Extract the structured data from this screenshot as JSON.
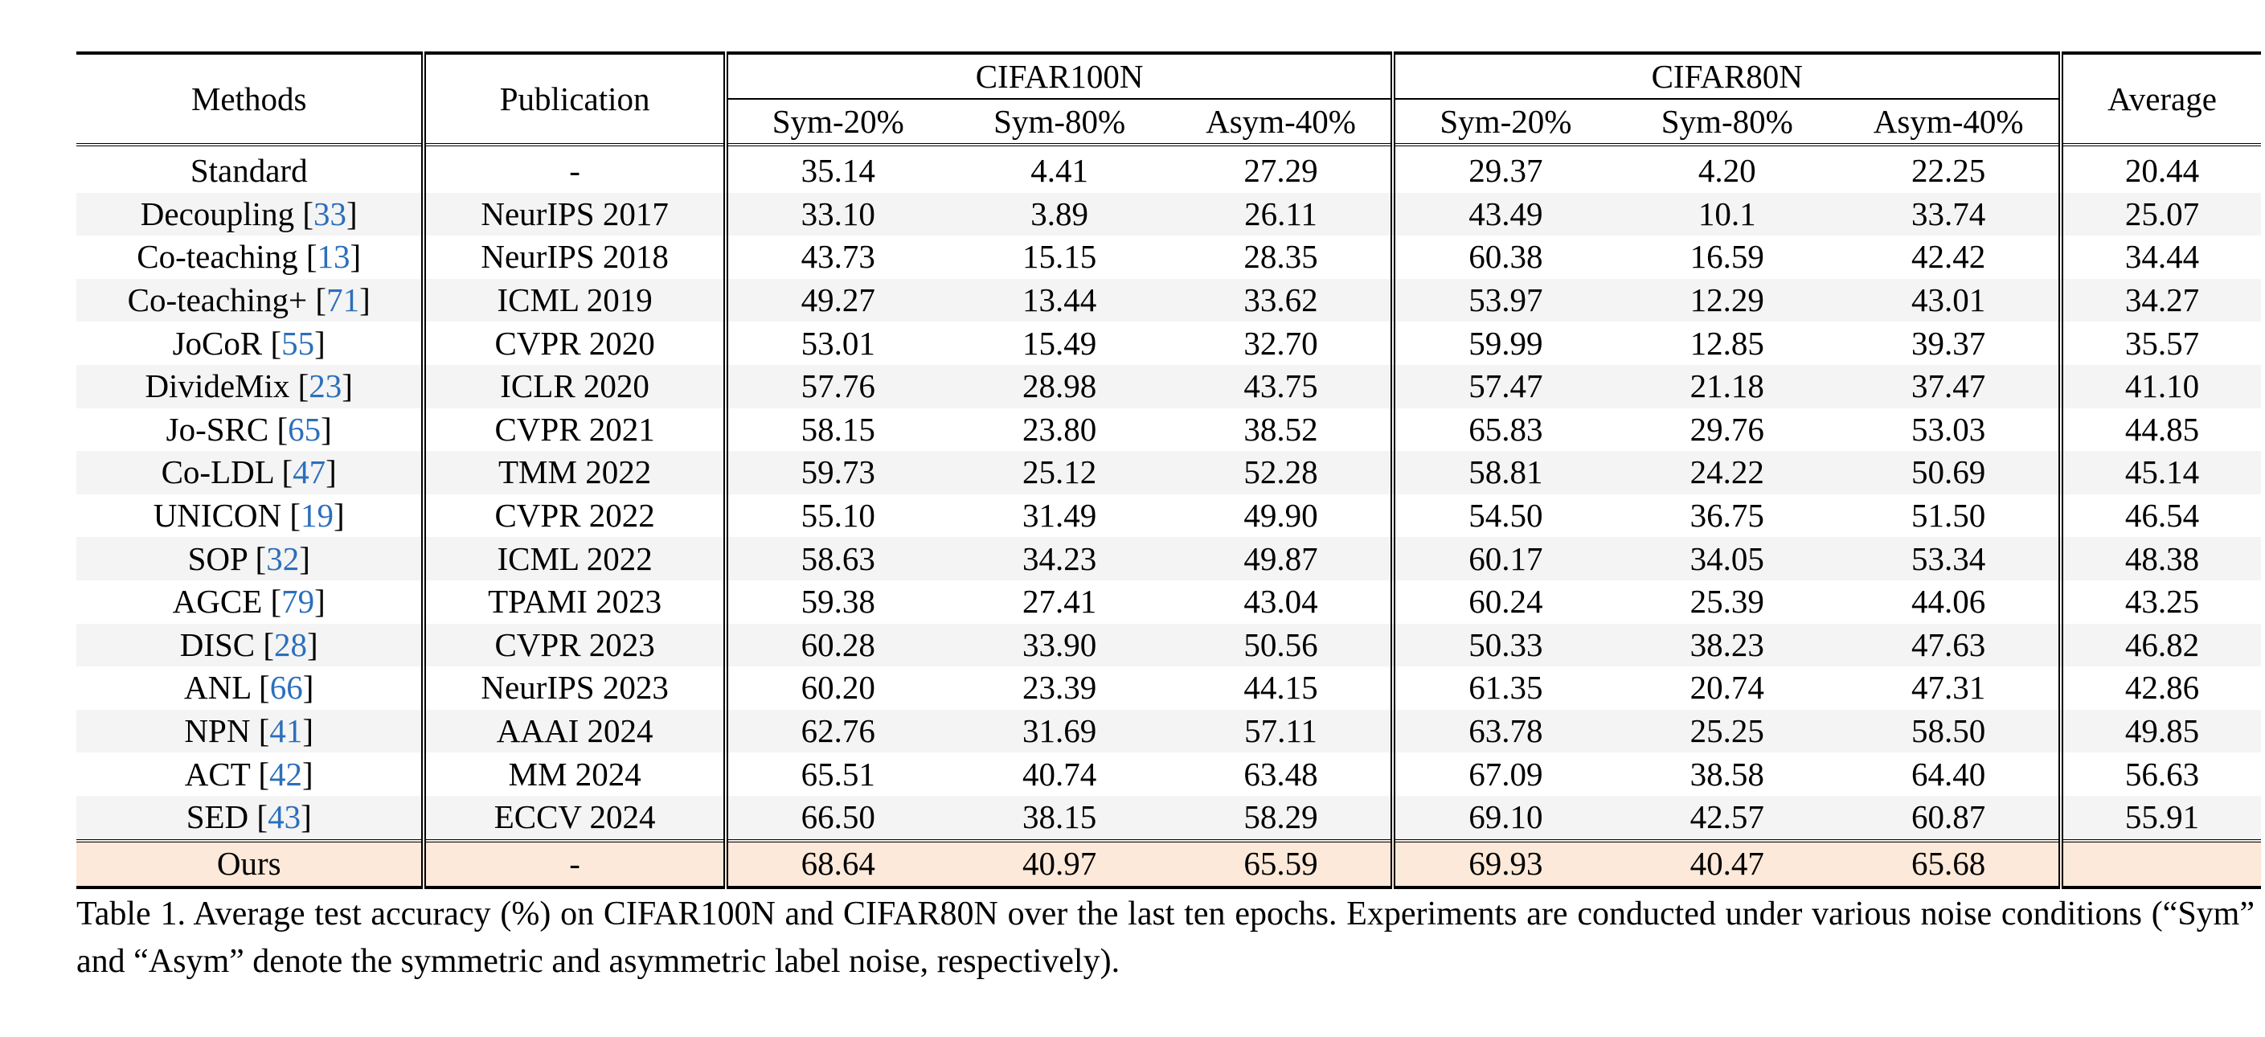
{
  "table": {
    "headers": {
      "methods": "Methods",
      "publication": "Publication",
      "group1": "CIFAR100N",
      "group2": "CIFAR80N",
      "average": "Average",
      "sub": [
        "Sym-20%",
        "Sym-80%",
        "Asym-40%",
        "Sym-20%",
        "Sym-80%",
        "Asym-40%"
      ]
    },
    "rows": [
      {
        "method": "Standard",
        "ref": "",
        "pub": "-",
        "v": [
          "35.14",
          "4.41",
          "27.29",
          "29.37",
          "4.20",
          "22.25",
          "20.44"
        ]
      },
      {
        "method": "Decoupling",
        "ref": "33",
        "pub": "NeurIPS 2017",
        "v": [
          "33.10",
          "3.89",
          "26.11",
          "43.49",
          "10.1",
          "33.74",
          "25.07"
        ]
      },
      {
        "method": "Co-teaching",
        "ref": "13",
        "pub": "NeurIPS 2018",
        "v": [
          "43.73",
          "15.15",
          "28.35",
          "60.38",
          "16.59",
          "42.42",
          "34.44"
        ]
      },
      {
        "method": "Co-teaching+",
        "ref": "71",
        "pub": "ICML 2019",
        "v": [
          "49.27",
          "13.44",
          "33.62",
          "53.97",
          "12.29",
          "43.01",
          "34.27"
        ]
      },
      {
        "method": "JoCoR",
        "ref": "55",
        "pub": "CVPR 2020",
        "v": [
          "53.01",
          "15.49",
          "32.70",
          "59.99",
          "12.85",
          "39.37",
          "35.57"
        ]
      },
      {
        "method": "DivideMix",
        "ref": "23",
        "pub": "ICLR 2020",
        "v": [
          "57.76",
          "28.98",
          "43.75",
          "57.47",
          "21.18",
          "37.47",
          "41.10"
        ]
      },
      {
        "method": "Jo-SRC",
        "ref": "65",
        "pub": "CVPR 2021",
        "v": [
          "58.15",
          "23.80",
          "38.52",
          "65.83",
          "29.76",
          "53.03",
          "44.85"
        ]
      },
      {
        "method": "Co-LDL",
        "ref": "47",
        "pub": "TMM 2022",
        "v": [
          "59.73",
          "25.12",
          "52.28",
          "58.81",
          "24.22",
          "50.69",
          "45.14"
        ]
      },
      {
        "method": "UNICON",
        "ref": "19",
        "pub": "CVPR 2022",
        "v": [
          "55.10",
          "31.49",
          "49.90",
          "54.50",
          "36.75",
          "51.50",
          "46.54"
        ]
      },
      {
        "method": "SOP",
        "ref": "32",
        "pub": "ICML 2022",
        "v": [
          "58.63",
          "34.23",
          "49.87",
          "60.17",
          "34.05",
          "53.34",
          "48.38"
        ]
      },
      {
        "method": "AGCE",
        "ref": "79",
        "pub": "TPAMI 2023",
        "v": [
          "59.38",
          "27.41",
          "43.04",
          "60.24",
          "25.39",
          "44.06",
          "43.25"
        ]
      },
      {
        "method": "DISC",
        "ref": "28",
        "pub": "CVPR 2023",
        "v": [
          "60.28",
          "33.90",
          "50.56",
          "50.33",
          "38.23",
          "47.63",
          "46.82"
        ]
      },
      {
        "method": "ANL",
        "ref": "66",
        "pub": "NeurIPS 2023",
        "v": [
          "60.20",
          "23.39",
          "44.15",
          "61.35",
          "20.74",
          "47.31",
          "42.86"
        ]
      },
      {
        "method": "NPN",
        "ref": "41",
        "pub": "AAAI 2024",
        "v": [
          "62.76",
          "31.69",
          "57.11",
          "63.78",
          "25.25",
          "58.50",
          "49.85"
        ]
      },
      {
        "method": "ACT",
        "ref": "42",
        "pub": "MM 2024",
        "v": [
          "65.51",
          "40.74",
          "63.48",
          "67.09",
          "38.58",
          "64.40",
          "56.63"
        ]
      },
      {
        "method": "SED",
        "ref": "43",
        "pub": "ECCV 2024",
        "v": [
          "66.50",
          "38.15",
          "58.29",
          "69.10",
          "42.57",
          "60.87",
          "55.91"
        ]
      }
    ],
    "ours": {
      "method": "Ours",
      "pub": "-",
      "v": [
        "68.64",
        "40.97",
        "65.59",
        "69.93",
        "40.47",
        "65.68",
        ""
      ],
      "bold": [
        true,
        true,
        true,
        true,
        false,
        true,
        false
      ]
    }
  },
  "caption": "Table 1.  Average test accuracy (%) on CIFAR100N and CIFAR80N over the last ten epochs.  Experiments are conducted under various noise conditions (“Sym” and “Asym” denote the symmetric and asymmetric label noise, respectively)."
}
